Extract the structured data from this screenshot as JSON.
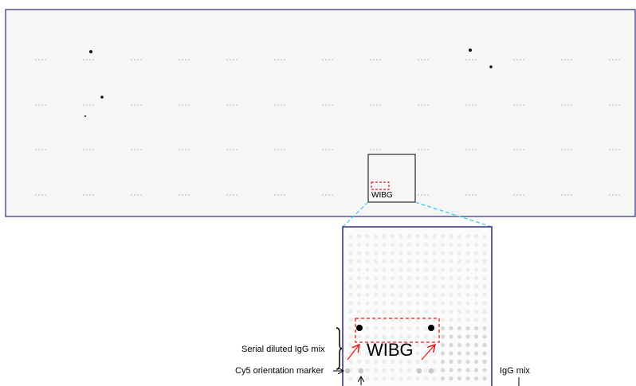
{
  "overview": {
    "label": "WIBG"
  },
  "zoom": {
    "label": "WIBG"
  },
  "annotations": {
    "serial": "Serial diluted IgG mix",
    "cy5": "Cy5 orientation marker",
    "igg": "IgG mix"
  }
}
